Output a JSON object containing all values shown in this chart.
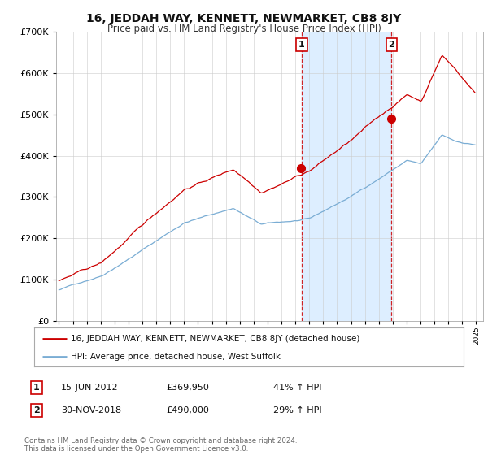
{
  "title": "16, JEDDAH WAY, KENNETT, NEWMARKET, CB8 8JY",
  "subtitle": "Price paid vs. HM Land Registry's House Price Index (HPI)",
  "legend_line1": "16, JEDDAH WAY, KENNETT, NEWMARKET, CB8 8JY (detached house)",
  "legend_line2": "HPI: Average price, detached house, West Suffolk",
  "sale1_label": "1",
  "sale1_date": "15-JUN-2012",
  "sale1_price": "£369,950",
  "sale1_hpi": "41% ↑ HPI",
  "sale2_label": "2",
  "sale2_date": "30-NOV-2018",
  "sale2_price": "£490,000",
  "sale2_hpi": "29% ↑ HPI",
  "footer": "Contains HM Land Registry data © Crown copyright and database right 2024.\nThis data is licensed under the Open Government Licence v3.0.",
  "background_color": "#ffffff",
  "hpi_color": "#7aadd4",
  "price_color": "#cc0000",
  "vline_color": "#cc0000",
  "shade_color": "#ddeeff",
  "sale1_x": 2012.458,
  "sale2_x": 2018.917,
  "sale1_y": 369950,
  "sale2_y": 490000,
  "ylim": [
    0,
    700000
  ],
  "xlim_start": 1994.8,
  "xlim_end": 2025.5,
  "yticks": [
    0,
    100000,
    200000,
    300000,
    400000,
    500000,
    600000,
    700000
  ],
  "title_fontsize": 10,
  "subtitle_fontsize": 8.5
}
